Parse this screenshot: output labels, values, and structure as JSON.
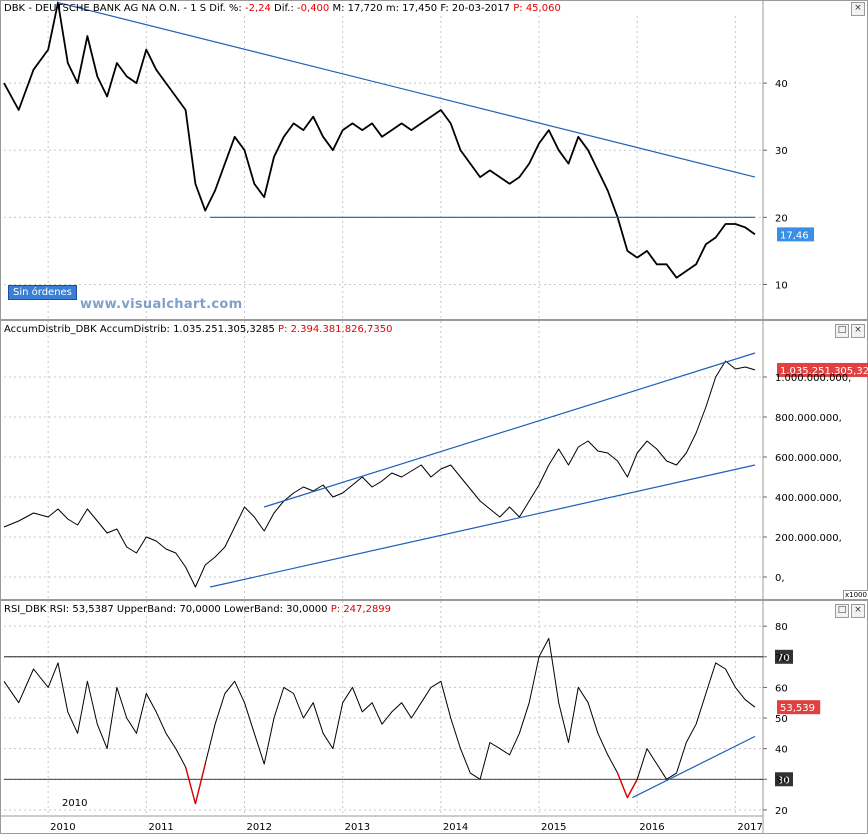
{
  "panels": {
    "price": {
      "ticker": "DBK",
      "name": "- DEUTSCHE BANK AG NA O.N.",
      "interval": "- 1 S",
      "dif_pct_label": "Dif. %:",
      "dif_pct_value": "-2,24",
      "dif_label": "Dif.:",
      "dif_value": "-0,400",
      "max_label": "M:",
      "max_value": "17,720",
      "min_label": "m:",
      "min_value": "17,450",
      "date_label": "F:",
      "date_value": "20-03-2017",
      "p_label": "P:",
      "p_value": "45,060",
      "last_value_tag": "17,46",
      "orders_label": "Sin órdenes",
      "watermark": "www.visualchart.com"
    },
    "accum": {
      "title": "AccumDistrib_DBK",
      "indicator": "AccumDistrib:",
      "indicator_value": "1.035.251.305,3285",
      "p_label": "P:",
      "p_value": "2.394.381.826,7350",
      "last_value_tag": "1.035.251.305,329",
      "scale_note": "x1000"
    },
    "rsi": {
      "title": "RSI_DBK",
      "indicator": "RSI:",
      "indicator_value": "53,5387",
      "upper_label": "UpperBand:",
      "upper_value": "70,0000",
      "lower_label": "LowerBand:",
      "lower_value": "30,0000",
      "p_label": "P:",
      "p_value": "247,2899",
      "last_value_tag": "53,539",
      "upper_tag": "70",
      "lower_tag": "30",
      "year_label": "2010"
    }
  },
  "window_buttons": [
    "□",
    "×"
  ],
  "colors": {
    "trendline": "#1f5fb8",
    "tag_blue": "#3a8ee6",
    "tag_red": "#e04040",
    "rsi_oversold": "#e00000",
    "grid": "#c8c8c8"
  },
  "chart_data": [
    {
      "type": "line",
      "name": "DBK price",
      "x_ticks": [
        "2010",
        "2011",
        "2012",
        "2013",
        "2014",
        "2015",
        "2016",
        "2017"
      ],
      "y_ticks": [
        10,
        20,
        30,
        40
      ],
      "ylim": [
        5,
        50
      ],
      "x": [
        2009.55,
        2009.7,
        2009.85,
        2010.0,
        2010.1,
        2010.2,
        2010.3,
        2010.4,
        2010.5,
        2010.6,
        2010.7,
        2010.8,
        2010.9,
        2011.0,
        2011.1,
        2011.2,
        2011.3,
        2011.4,
        2011.5,
        2011.6,
        2011.7,
        2011.8,
        2011.9,
        2012.0,
        2012.1,
        2012.2,
        2012.3,
        2012.4,
        2012.5,
        2012.6,
        2012.7,
        2012.8,
        2012.9,
        2013.0,
        2013.1,
        2013.2,
        2013.3,
        2013.4,
        2013.5,
        2013.6,
        2013.7,
        2013.8,
        2013.9,
        2014.0,
        2014.1,
        2014.2,
        2014.3,
        2014.4,
        2014.5,
        2014.6,
        2014.7,
        2014.8,
        2014.9,
        2015.0,
        2015.1,
        2015.2,
        2015.3,
        2015.4,
        2015.5,
        2015.6,
        2015.7,
        2015.8,
        2015.9,
        2016.0,
        2016.1,
        2016.2,
        2016.3,
        2016.4,
        2016.5,
        2016.6,
        2016.7,
        2016.8,
        2016.9,
        2017.0,
        2017.1,
        2017.2
      ],
      "values": [
        40,
        36,
        42,
        45,
        52,
        43,
        40,
        47,
        41,
        38,
        43,
        41,
        40,
        45,
        42,
        40,
        38,
        36,
        25,
        21,
        24,
        28,
        32,
        30,
        25,
        23,
        29,
        32,
        34,
        33,
        35,
        32,
        30,
        33,
        34,
        33,
        34,
        32,
        33,
        34,
        33,
        34,
        35,
        36,
        34,
        30,
        28,
        26,
        27,
        26,
        25,
        26,
        28,
        31,
        33,
        30,
        28,
        32,
        30,
        27,
        24,
        20,
        15,
        14,
        15,
        13,
        13,
        11,
        12,
        13,
        16,
        17,
        19,
        19,
        18.5,
        17.46
      ]
    },
    {
      "type": "line",
      "name": "AccumDistrib",
      "y_ticks": [
        0,
        200000000,
        400000000,
        600000000,
        800000000,
        1000000000
      ],
      "y_tick_labels": [
        "0,",
        "200.000.000,",
        "400.000.000,",
        "600.000.000,",
        "800.000.000,",
        "1.000.000.000,"
      ],
      "ylim": [
        -100000000,
        1200000000
      ],
      "x": [
        2009.55,
        2009.7,
        2009.85,
        2010.0,
        2010.1,
        2010.2,
        2010.3,
        2010.4,
        2010.5,
        2010.6,
        2010.7,
        2010.8,
        2010.9,
        2011.0,
        2011.1,
        2011.2,
        2011.3,
        2011.4,
        2011.5,
        2011.6,
        2011.7,
        2011.8,
        2011.9,
        2012.0,
        2012.1,
        2012.2,
        2012.3,
        2012.4,
        2012.5,
        2012.6,
        2012.7,
        2012.8,
        2012.9,
        2013.0,
        2013.1,
        2013.2,
        2013.3,
        2013.4,
        2013.5,
        2013.6,
        2013.7,
        2013.8,
        2013.9,
        2014.0,
        2014.1,
        2014.2,
        2014.3,
        2014.4,
        2014.5,
        2014.6,
        2014.7,
        2014.8,
        2014.9,
        2015.0,
        2015.1,
        2015.2,
        2015.3,
        2015.4,
        2015.5,
        2015.6,
        2015.7,
        2015.8,
        2015.9,
        2016.0,
        2016.1,
        2016.2,
        2016.3,
        2016.4,
        2016.5,
        2016.6,
        2016.7,
        2016.8,
        2016.9,
        2017.0,
        2017.1,
        2017.2
      ],
      "values": [
        250000000,
        280000000,
        320000000,
        300000000,
        340000000,
        290000000,
        260000000,
        340000000,
        280000000,
        220000000,
        240000000,
        150000000,
        120000000,
        200000000,
        180000000,
        140000000,
        120000000,
        50000000,
        -50000000,
        60000000,
        100000000,
        150000000,
        250000000,
        350000000,
        300000000,
        230000000,
        320000000,
        380000000,
        420000000,
        450000000,
        430000000,
        460000000,
        400000000,
        420000000,
        460000000,
        500000000,
        450000000,
        480000000,
        520000000,
        500000000,
        530000000,
        560000000,
        500000000,
        540000000,
        560000000,
        500000000,
        440000000,
        380000000,
        340000000,
        300000000,
        350000000,
        300000000,
        380000000,
        460000000,
        560000000,
        640000000,
        560000000,
        650000000,
        680000000,
        630000000,
        620000000,
        580000000,
        500000000,
        620000000,
        680000000,
        640000000,
        580000000,
        560000000,
        620000000,
        720000000,
        850000000,
        1000000000,
        1080000000,
        1040000000,
        1050000000,
        1035251305
      ]
    },
    {
      "type": "line",
      "name": "RSI",
      "y_ticks": [
        20,
        30,
        40,
        50,
        60,
        70,
        80
      ],
      "ylim": [
        18,
        83
      ],
      "bands": [
        70,
        30
      ],
      "x": [
        2009.55,
        2009.7,
        2009.85,
        2010.0,
        2010.1,
        2010.2,
        2010.3,
        2010.4,
        2010.5,
        2010.6,
        2010.7,
        2010.8,
        2010.9,
        2011.0,
        2011.1,
        2011.2,
        2011.3,
        2011.4,
        2011.5,
        2011.6,
        2011.7,
        2011.8,
        2011.9,
        2012.0,
        2012.1,
        2012.2,
        2012.3,
        2012.4,
        2012.5,
        2012.6,
        2012.7,
        2012.8,
        2012.9,
        2013.0,
        2013.1,
        2013.2,
        2013.3,
        2013.4,
        2013.5,
        2013.6,
        2013.7,
        2013.8,
        2013.9,
        2014.0,
        2014.1,
        2014.2,
        2014.3,
        2014.4,
        2014.5,
        2014.6,
        2014.7,
        2014.8,
        2014.9,
        2015.0,
        2015.1,
        2015.2,
        2015.3,
        2015.4,
        2015.5,
        2015.6,
        2015.7,
        2015.8,
        2015.9,
        2016.0,
        2016.1,
        2016.2,
        2016.3,
        2016.4,
        2016.5,
        2016.6,
        2016.7,
        2016.8,
        2016.9,
        2017.0,
        2017.1,
        2017.2
      ],
      "values": [
        62,
        55,
        66,
        60,
        68,
        52,
        45,
        62,
        48,
        40,
        60,
        50,
        45,
        58,
        52,
        45,
        40,
        34,
        22,
        35,
        48,
        58,
        62,
        55,
        45,
        35,
        50,
        60,
        58,
        50,
        55,
        45,
        40,
        55,
        60,
        52,
        55,
        48,
        52,
        55,
        50,
        55,
        60,
        62,
        50,
        40,
        32,
        30,
        42,
        40,
        38,
        45,
        55,
        70,
        76,
        55,
        42,
        60,
        55,
        45,
        38,
        32,
        24,
        30,
        40,
        35,
        30,
        32,
        42,
        48,
        58,
        68,
        66,
        60,
        56,
        53.54
      ]
    }
  ]
}
